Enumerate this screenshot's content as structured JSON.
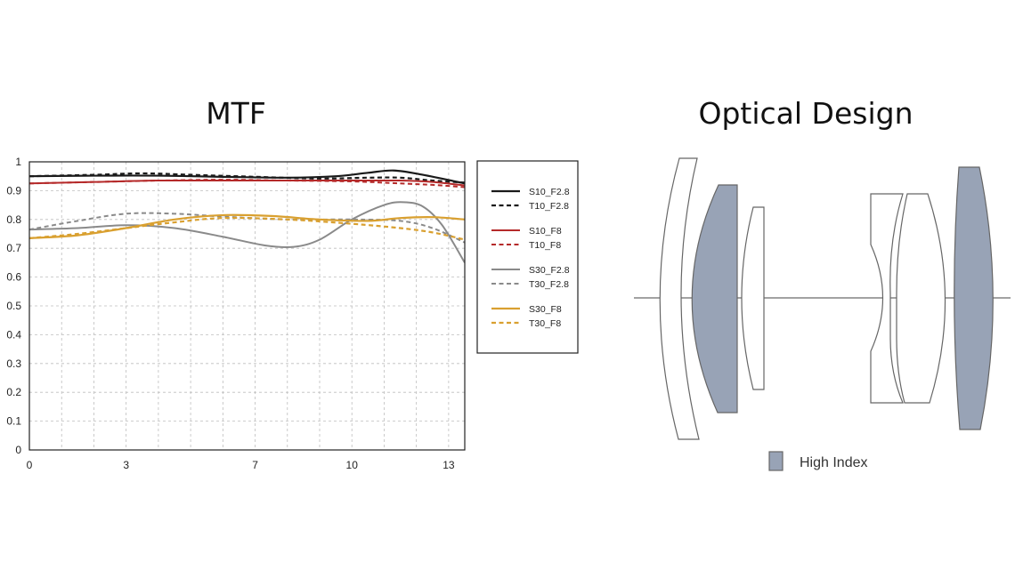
{
  "titles": {
    "mtf": "MTF",
    "optical": "Optical Design"
  },
  "chart_data": {
    "type": "line",
    "xlim": [
      0,
      13.5
    ],
    "ylim": [
      0,
      1
    ],
    "xticks": [
      0,
      3,
      7,
      10,
      13
    ],
    "xtick_labels": [
      "0",
      "3",
      "7",
      "10",
      "13"
    ],
    "yticks": [
      0,
      0.1,
      0.2,
      0.3,
      0.4,
      0.5,
      0.6,
      0.7,
      0.8,
      0.9,
      1
    ],
    "ytick_labels": [
      "0",
      "0.1",
      "0.2",
      "0.3",
      "0.4",
      "0.5",
      "0.6",
      "0.7",
      "0.8",
      "0.9",
      "1"
    ],
    "grid": true,
    "legend_position": "right",
    "series": [
      {
        "name": "S10_F2.8",
        "color": "#1a1a1a",
        "dash": false,
        "width": 2.2,
        "x": [
          0,
          2,
          4,
          6,
          8,
          9.5,
          10.5,
          11.3,
          12.2,
          13.5
        ],
        "y": [
          0.95,
          0.952,
          0.952,
          0.948,
          0.945,
          0.95,
          0.962,
          0.97,
          0.955,
          0.925
        ]
      },
      {
        "name": "T10_F2.8",
        "color": "#1a1a1a",
        "dash": true,
        "width": 2.2,
        "x": [
          0,
          2,
          3.5,
          5,
          7,
          9,
          10.5,
          11.5,
          12.5,
          13.5
        ],
        "y": [
          0.95,
          0.955,
          0.96,
          0.955,
          0.948,
          0.942,
          0.945,
          0.945,
          0.935,
          0.928
        ]
      },
      {
        "name": "S10_F8",
        "color": "#b52a2a",
        "dash": false,
        "width": 2,
        "x": [
          0,
          2,
          4,
          6,
          8,
          10,
          11.5,
          12.5,
          13.5
        ],
        "y": [
          0.925,
          0.93,
          0.935,
          0.935,
          0.935,
          0.935,
          0.935,
          0.93,
          0.918
        ]
      },
      {
        "name": "T10_F8",
        "color": "#b52a2a",
        "dash": true,
        "width": 2,
        "x": [
          0,
          2,
          4,
          6,
          8,
          10,
          11.5,
          12.5,
          13.5
        ],
        "y": [
          0.925,
          0.93,
          0.935,
          0.938,
          0.935,
          0.932,
          0.925,
          0.92,
          0.912
        ]
      },
      {
        "name": "S30_F2.8",
        "color": "#8a8a8a",
        "dash": false,
        "width": 2,
        "x": [
          0,
          1.5,
          3,
          4.5,
          6,
          7.3,
          8.2,
          9,
          10,
          11,
          11.6,
          12.2,
          12.8,
          13.5
        ],
        "y": [
          0.765,
          0.77,
          0.78,
          0.77,
          0.74,
          0.71,
          0.705,
          0.73,
          0.8,
          0.85,
          0.86,
          0.845,
          0.78,
          0.65
        ]
      },
      {
        "name": "T30_F2.8",
        "color": "#8a8a8a",
        "dash": true,
        "width": 2,
        "x": [
          0,
          1.5,
          3,
          4.5,
          6,
          8,
          10,
          11.5,
          12.5,
          13.5
        ],
        "y": [
          0.765,
          0.795,
          0.82,
          0.82,
          0.81,
          0.8,
          0.8,
          0.795,
          0.77,
          0.72
        ]
      },
      {
        "name": "S30_F8",
        "color": "#d9a030",
        "dash": false,
        "width": 2.2,
        "x": [
          0,
          1.5,
          3,
          4.5,
          6,
          7.5,
          9,
          10.5,
          11.5,
          12.5,
          13.5
        ],
        "y": [
          0.735,
          0.745,
          0.77,
          0.8,
          0.815,
          0.812,
          0.8,
          0.795,
          0.805,
          0.808,
          0.8
        ]
      },
      {
        "name": "T30_F8",
        "color": "#d9a030",
        "dash": true,
        "width": 2.2,
        "x": [
          0,
          1.5,
          3,
          4.5,
          6,
          8,
          10,
          11.5,
          12.5,
          13.5
        ],
        "y": [
          0.735,
          0.75,
          0.77,
          0.79,
          0.805,
          0.8,
          0.785,
          0.77,
          0.755,
          0.73
        ]
      }
    ]
  },
  "optical_design": {
    "legend_label": "High Index",
    "high_index_color": "#98a3b6",
    "lens_stroke_color": "#666666"
  }
}
